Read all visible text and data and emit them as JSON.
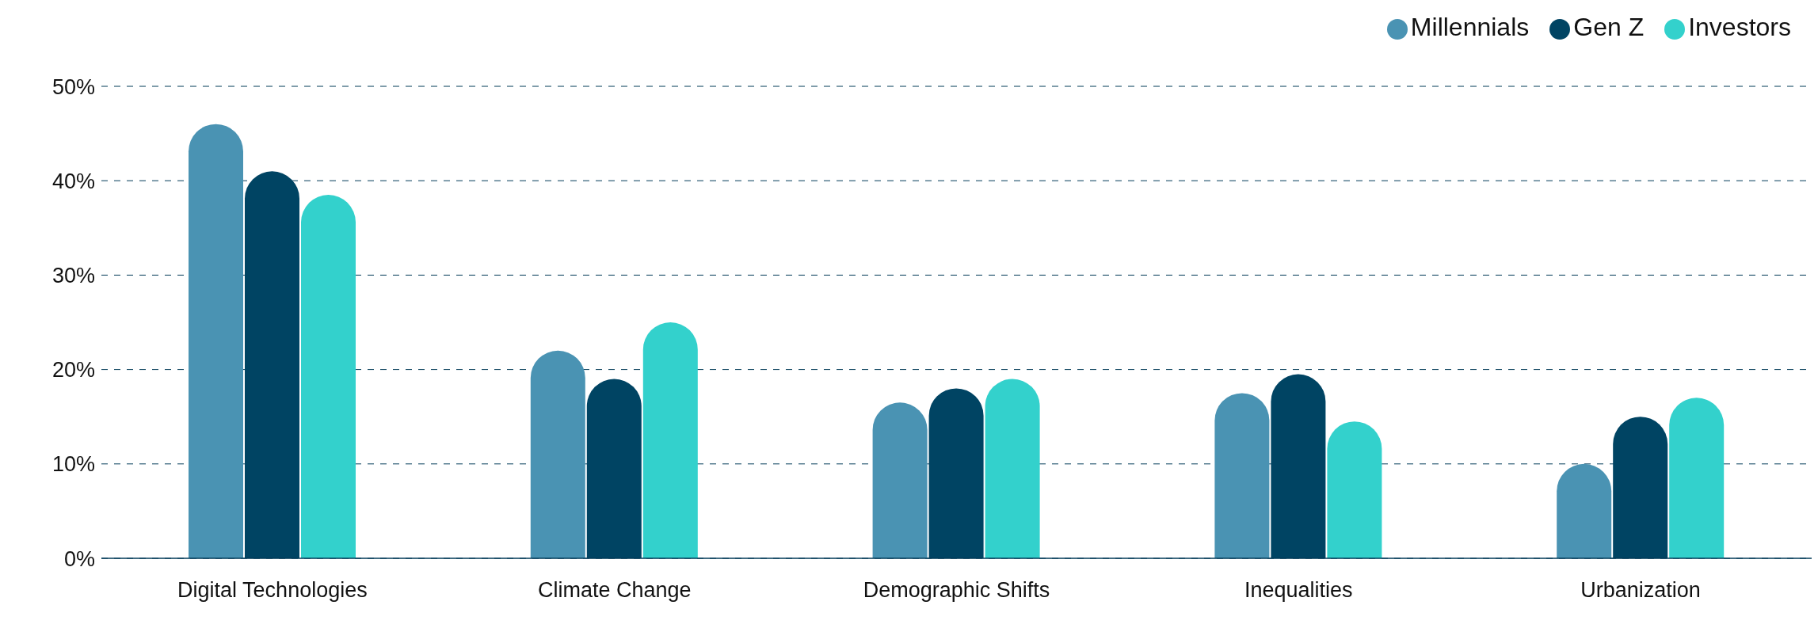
{
  "chart_data": {
    "type": "bar",
    "categories": [
      "Digital Technologies",
      "Climate Change",
      "Demographic Shifts",
      "Inequalities",
      "Urbanization"
    ],
    "series": [
      {
        "name": "Millennials",
        "color": "#4a93b3",
        "values": [
          46,
          22,
          16.5,
          17.5,
          10
        ]
      },
      {
        "name": "Gen Z",
        "color": "#004463",
        "values": [
          41,
          19,
          18,
          19.5,
          15
        ]
      },
      {
        "name": "Investors",
        "color": "#33d1cc",
        "values": [
          38.5,
          25,
          19,
          14.5,
          17
        ]
      }
    ],
    "ylim": [
      0,
      50
    ],
    "yticks": [
      {
        "value": 0,
        "label": "0%"
      },
      {
        "value": 10,
        "label": "10%"
      },
      {
        "value": 20,
        "label": "20%"
      },
      {
        "value": 30,
        "label": "30%"
      },
      {
        "value": 40,
        "label": "40%"
      },
      {
        "value": 50,
        "label": "50%"
      }
    ],
    "grid": "y",
    "legend": "top right"
  }
}
